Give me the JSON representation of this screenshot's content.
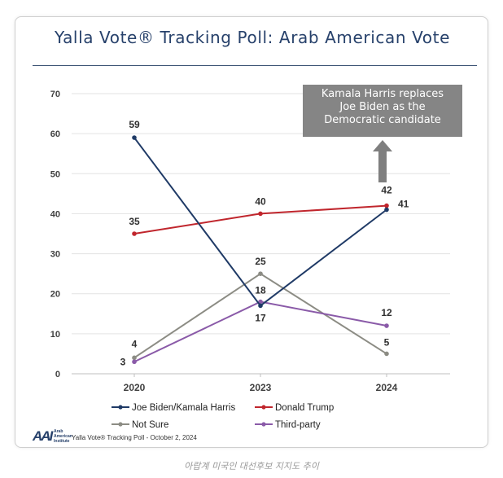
{
  "title": "Yalla Vote® Tracking Poll: Arab American Vote",
  "callout": {
    "lines": [
      "Kamala Harris replaces",
      "Joe Biden as the",
      "Democratic candidate"
    ]
  },
  "footer": {
    "logo_mark": "AAI",
    "institute_lines": [
      "Arab",
      "American",
      "Institute"
    ],
    "source": "Yalla Vote® Tracking Poll - October 2, 2024"
  },
  "caption": "아랍계 미국인 대선후보 지지도 추이",
  "colors": {
    "title": "#27416b",
    "biden_harris": "#1f3a66",
    "trump": "#c0262d",
    "not_sure": "#8c8c84",
    "third_party": "#8a5aa8",
    "callout_bg": "#858585"
  },
  "chart_data": {
    "type": "line",
    "title": "Yalla Vote® Tracking Poll: Arab American Vote",
    "x": [
      "2020",
      "2023",
      "2024"
    ],
    "ylim": [
      0,
      70
    ],
    "yticks": [
      0,
      10,
      20,
      30,
      40,
      50,
      60,
      70
    ],
    "grid": true,
    "legend_position": "bottom",
    "series": [
      {
        "name": "Joe Biden/Kamala Harris",
        "values": [
          59,
          17,
          41
        ],
        "labels": [
          "59",
          "17",
          "41"
        ],
        "color": "#1f3a66"
      },
      {
        "name": "Donald Trump",
        "values": [
          35,
          40,
          42
        ],
        "labels": [
          "35",
          "40",
          "42"
        ],
        "color": "#c0262d"
      },
      {
        "name": "Not Sure",
        "values": [
          4,
          25,
          5
        ],
        "labels": [
          "4",
          "25",
          "5"
        ],
        "color": "#8c8c84"
      },
      {
        "name": "Third-party",
        "values": [
          3,
          18,
          12
        ],
        "labels": [
          "3",
          "18",
          "12"
        ],
        "color": "#8a5aa8"
      }
    ],
    "annotation": "Kamala Harris replaces Joe Biden as the Democratic candidate"
  }
}
